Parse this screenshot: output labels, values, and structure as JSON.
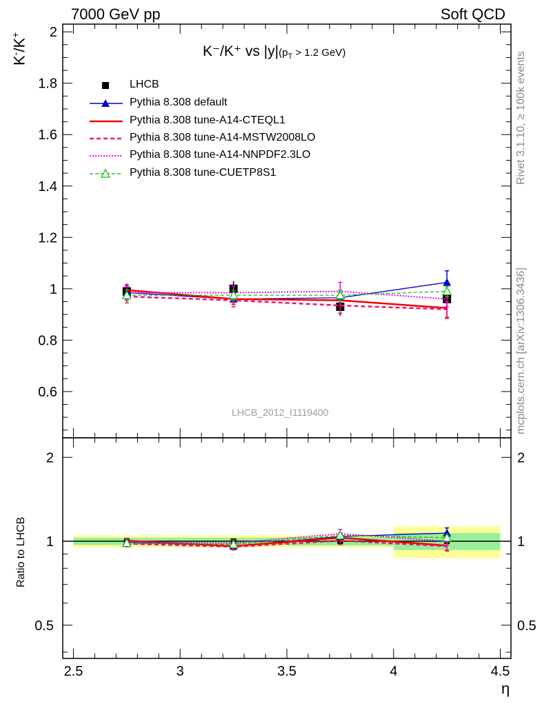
{
  "header": {
    "left": "7000 GeV pp",
    "right": "Soft QCD"
  },
  "side_labels": {
    "rivet": "Rivet 3.1.10, ≥ 100k events",
    "mcplots": "mcplots.cern.ch [arXiv:1306.3436]"
  },
  "watermark": "LHCB_2012_I1119400",
  "plot_title": {
    "main": "K⁻/K⁺ vs |y|",
    "sub": "(p",
    "subT": "T",
    "cut": " > 1.2 GeV)"
  },
  "ylabel_top": {
    "k1": "K",
    "sup1": "-",
    "slash": "/K",
    "sup2": "+"
  },
  "ylabel_ratio": "Ratio to LHCB",
  "xlabel": "η",
  "legend": [
    {
      "label": "LHCB",
      "color": "#000000",
      "style": "marker-square"
    },
    {
      "label": "Pythia 8.308 default",
      "color": "#0000cc",
      "style": "solid-triangle"
    },
    {
      "label": "Pythia 8.308 tune-A14-CTEQL1",
      "color": "#ee0000",
      "style": "solid-thick"
    },
    {
      "label": "Pythia 8.308 tune-A14-MSTW2008LO",
      "color": "#ee1177",
      "style": "dashed-thick"
    },
    {
      "label": "Pythia 8.308 tune-A14-NNPDF2.3LO",
      "color": "#ee00ee",
      "style": "dotted"
    },
    {
      "label": "Pythia 8.308 tune-CUETP8S1",
      "color": "#00bb00",
      "style": "dashed-open-triangle"
    }
  ],
  "chart_data": {
    "type": "line",
    "x": [
      2.75,
      3.25,
      3.75,
      4.25
    ],
    "x_edges": [
      2.5,
      3.0,
      3.5,
      4.0,
      4.5
    ],
    "xlim": [
      2.45,
      4.55
    ],
    "ylim_top": [
      0.42,
      2.03
    ],
    "ylim_ratio": [
      0.38,
      2.35
    ],
    "x_ticks": [
      "2.5",
      "3",
      "3.5",
      "4",
      "4.5"
    ],
    "y_ticks_top": [
      "0.6",
      "0.8",
      "1",
      "1.2",
      "1.4",
      "1.6",
      "1.8",
      "2"
    ],
    "y_ticks_ratio": [
      "0.5",
      "1",
      "2"
    ],
    "data": {
      "name": "LHCB",
      "values": [
        0.99,
        1.0,
        0.93,
        0.96
      ],
      "errors": [
        0.03,
        0.03,
        0.035,
        0.07
      ],
      "ratio_band_inner": [
        0.03,
        0.03,
        0.035,
        0.07
      ],
      "ratio_band_outer": [
        0.05,
        0.05,
        0.05,
        0.13
      ]
    },
    "series": [
      {
        "name": "Pythia 8.308 default",
        "values": [
          0.985,
          0.96,
          0.965,
          1.025
        ],
        "errors": [
          0.02,
          0.02,
          0.02,
          0.045
        ],
        "ratio": [
          0.995,
          0.96,
          1.04,
          1.07
        ]
      },
      {
        "name": "Pythia 8.308 tune-A14-CTEQL1",
        "values": [
          0.995,
          0.96,
          0.955,
          0.925
        ],
        "errors": [
          0.02,
          0.02,
          0.02,
          0.04
        ],
        "ratio": [
          1.005,
          0.96,
          1.03,
          0.965
        ]
      },
      {
        "name": "Pythia 8.308 tune-A14-MSTW2008LO",
        "values": [
          0.97,
          0.955,
          0.935,
          0.92
        ],
        "errors": [
          0.025,
          0.025,
          0.03,
          0.03
        ],
        "ratio": [
          0.98,
          0.955,
          1.005,
          0.96
        ]
      },
      {
        "name": "Pythia 8.308 tune-A14-NNPDF2.3LO",
        "values": [
          0.985,
          0.985,
          0.99,
          0.96
        ],
        "errors": [
          0.025,
          0.025,
          0.035,
          0.03
        ],
        "ratio": [
          0.995,
          0.985,
          1.065,
          1.0
        ]
      },
      {
        "name": "Pythia 8.308 tune-CUETP8S1",
        "values": [
          0.975,
          0.975,
          0.975,
          0.99
        ],
        "errors": [
          0.02,
          0.02,
          0.02,
          0.02
        ],
        "ratio": [
          0.985,
          0.975,
          1.05,
          1.03
        ]
      }
    ]
  }
}
